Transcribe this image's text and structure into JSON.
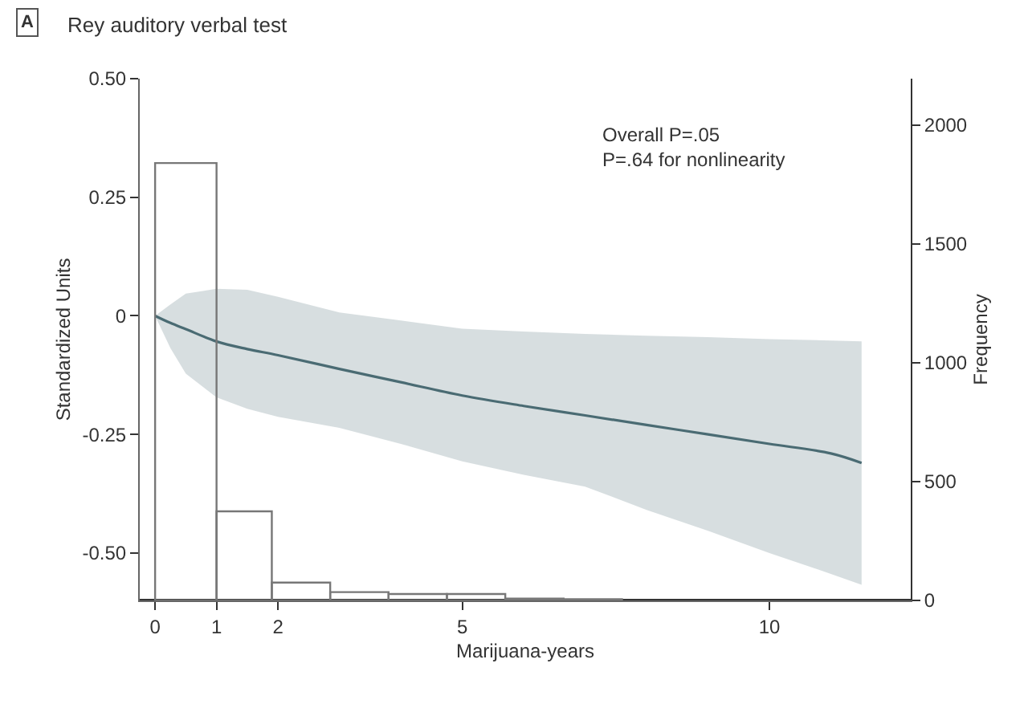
{
  "chart_data": {
    "type": "line",
    "title": "Rey auditory verbal test",
    "xlabel": "Marijuana-years",
    "ylabel": "Standardized Units",
    "y2label": "Frequency",
    "annotations": [
      "A",
      "Overall P=.05",
      "P=.64 for nonlinearity"
    ],
    "xlim": [
      -0.25,
      12.3
    ],
    "xticks": [
      0,
      1,
      2,
      5,
      10
    ],
    "ylim": [
      -0.6,
      0.5
    ],
    "yticks": [
      {
        "value": -0.5,
        "label": "-0.50"
      },
      {
        "value": -0.25,
        "label": "-0.25"
      },
      0,
      {
        "value": 0.25,
        "label": "0.25"
      },
      {
        "value": 0.5,
        "label": "0.50"
      }
    ],
    "y2lim": [
      0,
      2195
    ],
    "y2ticks": [
      0,
      500,
      1000,
      1500,
      2000
    ],
    "series": [
      {
        "type": "histogram",
        "axis": "y2",
        "color": "#777777",
        "bins": [
          0,
          1,
          1.9,
          2.85,
          3.8,
          4.75,
          5.7,
          6.65,
          7.6
        ],
        "values": [
          1840,
          375,
          75,
          35,
          27,
          27,
          8,
          5
        ]
      },
      {
        "color": "#4a6b73",
        "x": [
          0,
          0.25,
          0.5,
          1,
          1.5,
          2,
          3,
          4,
          5,
          6,
          7,
          8,
          9,
          10,
          11,
          11.5
        ],
        "values": [
          0,
          -0.015,
          -0.028,
          -0.054,
          -0.07,
          -0.083,
          -0.112,
          -0.14,
          -0.168,
          -0.19,
          -0.21,
          -0.23,
          -0.25,
          -0.27,
          -0.29,
          -0.31
        ],
        "upper": [
          0,
          0.024,
          0.047,
          0.057,
          0.055,
          0.04,
          0.007,
          -0.01,
          -0.027,
          -0.033,
          -0.038,
          -0.042,
          -0.045,
          -0.049,
          -0.052,
          -0.054
        ],
        "lower": [
          0,
          -0.068,
          -0.122,
          -0.172,
          -0.196,
          -0.213,
          -0.236,
          -0.27,
          -0.307,
          -0.335,
          -0.36,
          -0.409,
          -0.453,
          -0.5,
          -0.544,
          -0.567
        ]
      }
    ]
  }
}
